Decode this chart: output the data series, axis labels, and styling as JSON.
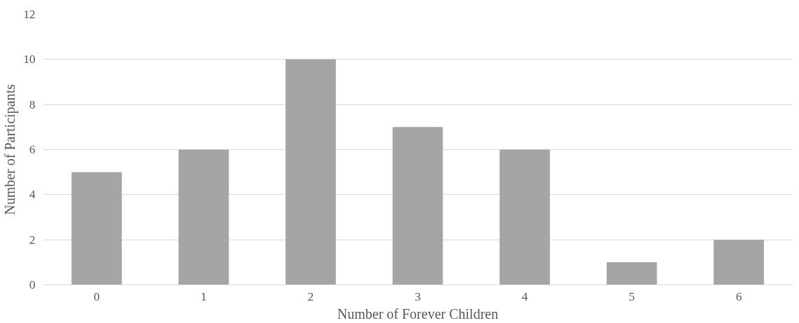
{
  "chart_data": {
    "type": "bar",
    "xlabel": "Number of Forever Children",
    "ylabel": "Number of Participants",
    "categories": [
      "0",
      "1",
      "2",
      "3",
      "4",
      "5",
      "6"
    ],
    "values": [
      5,
      6,
      10,
      7,
      6,
      1,
      2
    ],
    "color": "#a5a5a5",
    "ylim": [
      0,
      12
    ],
    "yticks": [
      0,
      2,
      4,
      6,
      8,
      10,
      12
    ],
    "grid": "y"
  }
}
